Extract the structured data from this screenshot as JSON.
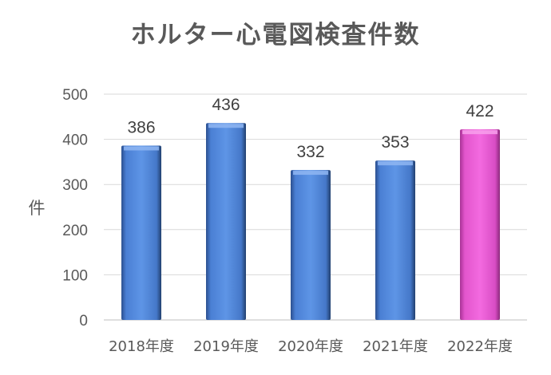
{
  "chart_data": {
    "type": "bar",
    "title": "ホルター心電図検査件数",
    "ylabel": "件",
    "xlabel": "",
    "categories": [
      "2018年度",
      "2019年度",
      "2020年度",
      "2021年度",
      "2022年度"
    ],
    "values": [
      386,
      436,
      332,
      353,
      422
    ],
    "ylim": [
      0,
      500
    ],
    "yticks": [
      "0",
      "100",
      "200",
      "300",
      "400",
      "500"
    ],
    "data_labels": [
      "386",
      "436",
      "332",
      "353",
      "422"
    ],
    "grid": true,
    "legend": "none",
    "colors": [
      "#4f86d9",
      "#4f86d9",
      "#4f86d9",
      "#4f86d9",
      "#ee5fd8"
    ]
  }
}
